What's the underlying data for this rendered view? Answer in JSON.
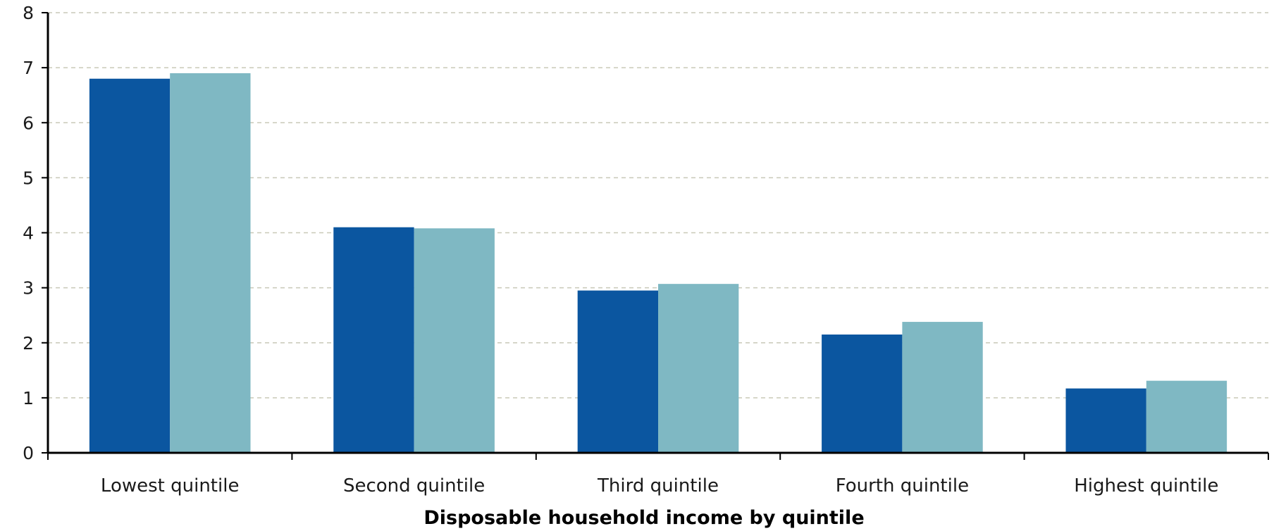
{
  "chart_data": {
    "type": "bar",
    "categories": [
      "Lowest quintile",
      "Second quintile",
      "Third quintile",
      "Fourth quintile",
      "Highest quintile"
    ],
    "series": [
      {
        "values": [
          6.8,
          4.1,
          2.95,
          2.15,
          1.17
        ],
        "color": "#0b56a0"
      },
      {
        "values": [
          6.9,
          4.08,
          3.07,
          2.38,
          1.31
        ],
        "color": "#7fb8c3"
      }
    ],
    "ylim": [
      0,
      8
    ],
    "yticks": [
      0,
      1,
      2,
      3,
      4,
      5,
      6,
      7,
      8
    ],
    "grid": true,
    "xlabel": "Disposable household income by quintile",
    "ylabel": "",
    "title": "",
    "legend": "none"
  }
}
